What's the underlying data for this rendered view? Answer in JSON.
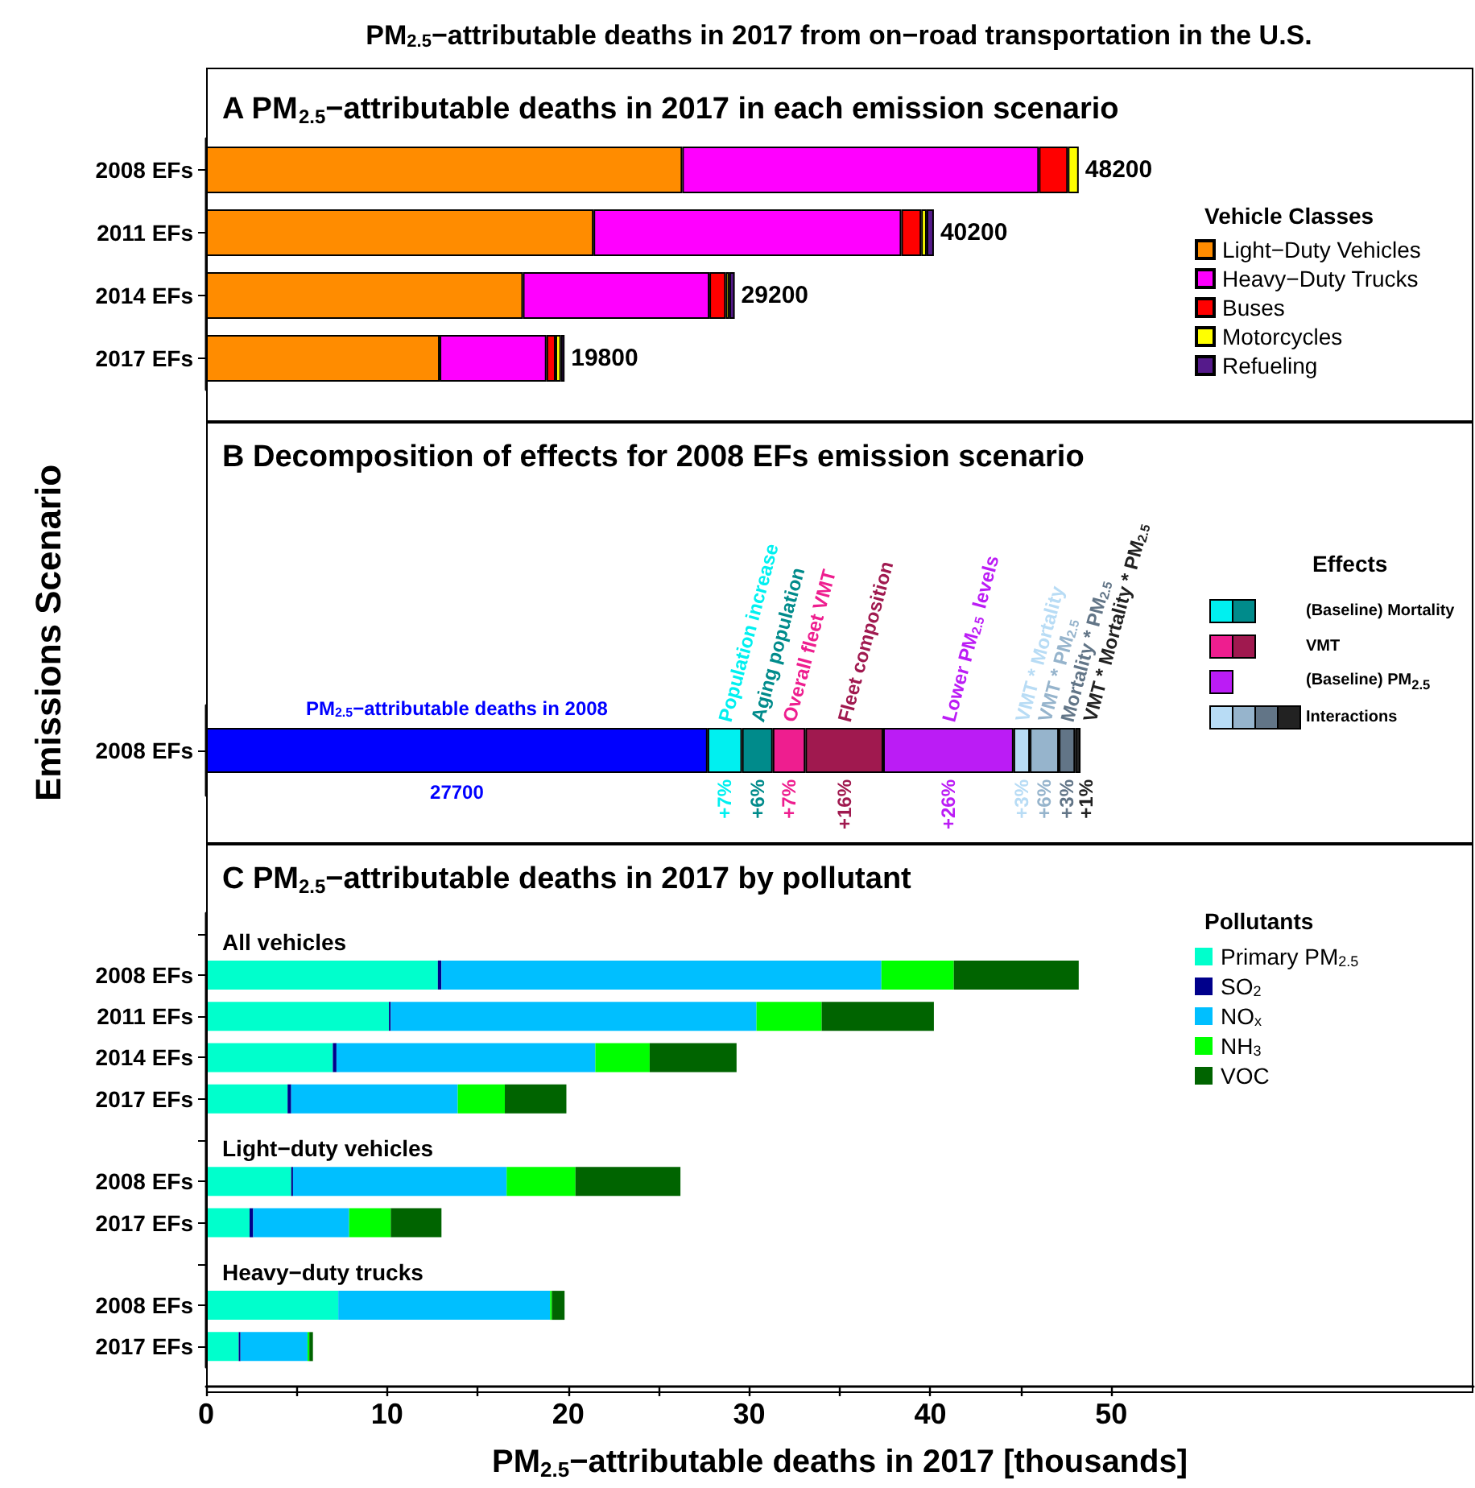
{
  "chart_data": [
    {
      "type": "bar",
      "orientation": "horizontal",
      "stacked": true,
      "title": "PM$_{2.5}$−attributable deaths in 2017 from on−road transportation in the U.S.",
      "subtitle": "A PM$_{2.5}$−attributable deaths in 2017 in each emission scenario",
      "categories": [
        "2008 EFs",
        "2011 EFs",
        "2014 EFs",
        "2017 EFs"
      ],
      "series": [
        {
          "name": "Light−Duty Vehicles",
          "color": "#ff8c00",
          "values": [
            26.3,
            21.4,
            17.5,
            12.9
          ]
        },
        {
          "name": "Heavy−Duty Trucks",
          "color": "#ff00ff",
          "values": [
            19.7,
            17.0,
            10.3,
            5.9
          ]
        },
        {
          "name": "Buses",
          "color": "#ff0000",
          "values": [
            1.6,
            1.1,
            0.9,
            0.5
          ]
        },
        {
          "name": "Motorcycles",
          "color": "#ffff00",
          "values": [
            0.6,
            0.3,
            0.2,
            0.3
          ]
        },
        {
          "name": "Refueling",
          "color": "#551a8b",
          "values": [
            null,
            0.4,
            0.3,
            0.2
          ]
        }
      ],
      "totals": [
        "48200",
        "40200",
        "29200",
        "19800"
      ],
      "legend_title": "Vehicle Classes",
      "legend": "right",
      "xlim": [
        0,
        70
      ],
      "tick_labels": "y"
    },
    {
      "type": "bar",
      "orientation": "horizontal",
      "stacked": true,
      "title": "B Decomposition of effects for 2008 EFs emission scenario",
      "ylabel": "Emissions Scenario",
      "categories": [
        "2008 EFs"
      ],
      "series": [
        {
          "name": "PM$_{2.5}$−attributable deaths in 2008",
          "color": "#0000ff",
          "values": [
            27.7
          ]
        },
        {
          "name": "Population increase",
          "color": "#00f0f0",
          "values": [
            1.9
          ]
        },
        {
          "name": "Aging population",
          "color": "#008b8b",
          "values": [
            1.7
          ]
        },
        {
          "name": "Overall fleet VMT",
          "color": "#ee1e8f",
          "values": [
            1.8
          ]
        },
        {
          "name": "Fleet composition",
          "color": "#a0194f",
          "values": [
            4.3
          ]
        },
        {
          "name": "Lower PM$_{2.5}$ levels",
          "color": "#bb1cf5",
          "values": [
            7.2
          ]
        },
        {
          "name": "VMT * Mortality",
          "color": "#b8dcf5",
          "values": [
            0.9
          ]
        },
        {
          "name": "VMT * PM$_{2.5}$",
          "color": "#96b4cc",
          "values": [
            1.6
          ]
        },
        {
          "name": "Mortality * PM$_{2.5}$",
          "color": "#627587",
          "values": [
            0.9
          ]
        },
        {
          "name": "VMT * Mortality * PM$_{2.5}$",
          "color": "#222222",
          "values": [
            0.3
          ]
        }
      ],
      "legend_title": "Effects",
      "annotations": [
        "(Baseline) Mortality",
        "VMT",
        "(Baseline) PM$_{2.5}$",
        "Interactions",
        "27700",
        "+7%",
        "+6%",
        "+7%",
        "+16%",
        "+26%",
        "+3%",
        "+6%",
        "+3%",
        "+1%"
      ],
      "xlim": [
        0,
        70
      ],
      "tick_labels": "y"
    },
    {
      "type": "bar",
      "orientation": "horizontal",
      "stacked": true,
      "title": "C PM$_{2.5}$−attributable deaths in 2017 by pollutant",
      "xlabel": "PM$_{2.5}$−attributable deaths in 2017 [thousands]",
      "categories": [
        null,
        "2008 EFs",
        "2011 EFs",
        "2014 EFs",
        "2017 EFs",
        null,
        "2008 EFs",
        "2017 EFs",
        null,
        "2008 EFs",
        "2017 EFs"
      ],
      "series": [
        {
          "name": "Primary PM$_{2.5}$",
          "color": "#00ffcc",
          "values": [
            null,
            12.8,
            10.1,
            7.0,
            4.5,
            null,
            4.7,
            2.4,
            null,
            7.3,
            1.8
          ]
        },
        {
          "name": "SO$_{2}$",
          "color": "#00008b",
          "values": [
            null,
            0.2,
            0.1,
            0.2,
            0.2,
            null,
            0.1,
            0.2,
            null,
            0,
            0.1
          ]
        },
        {
          "name": "NO$_{x}$",
          "color": "#00bfff",
          "values": [
            null,
            24.3,
            20.2,
            14.3,
            9.2,
            null,
            11.8,
            5.3,
            null,
            11.7,
            3.7
          ]
        },
        {
          "name": "NH$_{3}$",
          "color": "#00ff00",
          "values": [
            null,
            4.0,
            3.6,
            3.0,
            2.6,
            null,
            3.8,
            2.3,
            null,
            0.1,
            0.1
          ]
        },
        {
          "name": "VOC",
          "color": "#006400",
          "values": [
            null,
            6.9,
            6.2,
            4.8,
            3.4,
            null,
            5.8,
            2.8,
            null,
            0.7,
            0.2
          ]
        }
      ],
      "annotations": [
        "All vehicles",
        "Light−duty vehicles",
        "Heavy−duty trucks"
      ],
      "legend_title": "Pollutants",
      "legend": "right",
      "xlim": [
        0,
        70
      ],
      "xticks": [
        0,
        {
          "value": 5,
          "label": null
        },
        10,
        {
          "value": 15,
          "label": null
        },
        20,
        {
          "value": 25,
          "label": null
        },
        30,
        {
          "value": 35,
          "label": null
        },
        40,
        {
          "value": 45,
          "label": null
        },
        50
      ]
    }
  ]
}
